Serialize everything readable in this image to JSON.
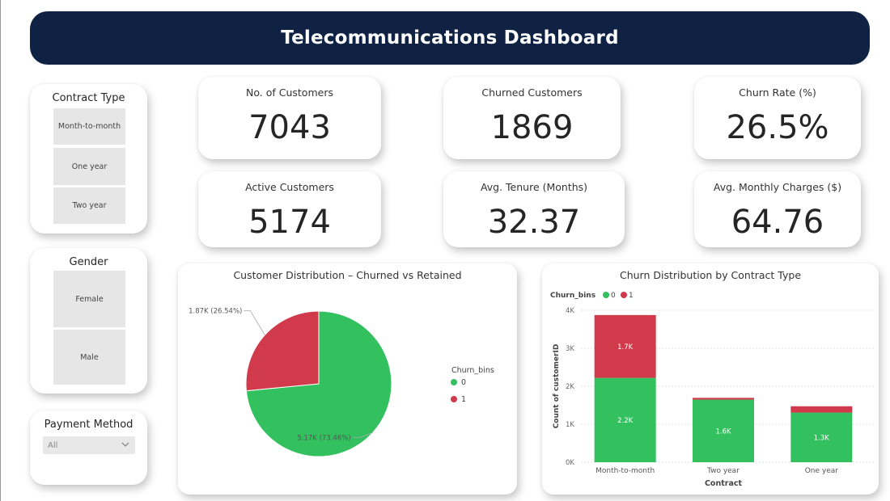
{
  "header": {
    "title": "Telecommunications Dashboard"
  },
  "slicers": {
    "contract": {
      "title": "Contract Type",
      "items": [
        "Month-to-month",
        "One year",
        "Two year"
      ]
    },
    "gender": {
      "title": "Gender",
      "items": [
        "Female",
        "Male"
      ]
    },
    "payment": {
      "title": "Payment Method",
      "selected": "All"
    }
  },
  "kpis": [
    {
      "label": "No. of Customers",
      "value": "7043"
    },
    {
      "label": "Churned Customers",
      "value": "1869"
    },
    {
      "label": "Churn Rate (%)",
      "value": "26.5%"
    },
    {
      "label": "Active Customers",
      "value": "5174"
    },
    {
      "label": "Avg. Tenure (Months)",
      "value": "32.37"
    },
    {
      "label": "Avg. Monthly Charges ($)",
      "value": "64.76"
    }
  ],
  "colors": {
    "churn0": "#33c05f",
    "churn1": "#d13a4a",
    "header_bg": "#0f2244"
  },
  "chart_data": [
    {
      "type": "pie",
      "title": "Customer Distribution – Churned vs Retained",
      "legend_title": "Churn_bins",
      "legend_position": "right",
      "slices": [
        {
          "name": "0",
          "value": 5174,
          "label": "5.17K (73.46%)",
          "color": "#33c05f"
        },
        {
          "name": "1",
          "value": 1869,
          "label": "1.87K (26.54%)",
          "color": "#d13a4a"
        }
      ]
    },
    {
      "type": "bar",
      "stacked": true,
      "title": "Churn Distribution by Contract Type",
      "legend_title": "Churn_bins",
      "legend_position": "top-left",
      "xlabel": "Contract",
      "ylabel": "Count of customerID",
      "categories": [
        "Month-to-month",
        "Two year",
        "One year"
      ],
      "yticks": [
        "0K",
        "1K",
        "2K",
        "3K",
        "4K"
      ],
      "ylim": [
        0,
        4000
      ],
      "grid": true,
      "series": [
        {
          "name": "0",
          "color": "#33c05f",
          "values": [
            2220,
            1647,
            1307
          ],
          "labels": [
            "2.2K",
            "1.6K",
            "1.3K"
          ]
        },
        {
          "name": "1",
          "color": "#d13a4a",
          "values": [
            1655,
            48,
            166
          ],
          "labels": [
            "1.7K",
            "",
            ""
          ]
        }
      ]
    }
  ]
}
